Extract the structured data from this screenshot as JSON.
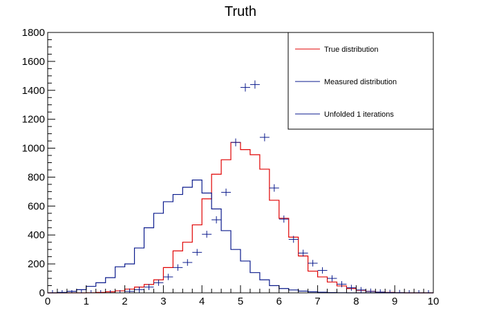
{
  "chart_data": {
    "type": "line",
    "title": "Truth",
    "xlabel": "",
    "ylabel": "",
    "xlim": [
      0,
      10
    ],
    "ylim": [
      0,
      1800
    ],
    "x_ticks": [
      "0",
      "1",
      "2",
      "3",
      "4",
      "5",
      "6",
      "7",
      "8",
      "9",
      "10"
    ],
    "y_ticks": [
      "0",
      "200",
      "400",
      "600",
      "800",
      "1000",
      "1200",
      "1400",
      "1600",
      "1800"
    ],
    "bin_edges": [
      0,
      0.25,
      0.5,
      0.75,
      1,
      1.25,
      1.5,
      1.75,
      2,
      2.25,
      2.5,
      2.75,
      3,
      3.25,
      3.5,
      3.75,
      4,
      4.25,
      4.5,
      4.75,
      5,
      5.25,
      5.5,
      5.75,
      6,
      6.25,
      6.5,
      6.75,
      7,
      7.25,
      7.5,
      7.75,
      8,
      8.25,
      8.5,
      8.75,
      9,
      9.25,
      9.5,
      9.75,
      10
    ],
    "legend_position": "top-right",
    "series": [
      {
        "name": "True distribution",
        "style": "step",
        "color": "#e00000",
        "values": [
          0,
          0,
          0,
          0,
          1,
          3,
          7,
          14,
          26,
          40,
          58,
          90,
          175,
          290,
          350,
          470,
          650,
          820,
          920,
          1040,
          990,
          955,
          855,
          640,
          515,
          385,
          255,
          150,
          110,
          75,
          48,
          30,
          18,
          10,
          5,
          3,
          1,
          0,
          0,
          0
        ]
      },
      {
        "name": "Measured distribution",
        "style": "step",
        "color": "#0a1a8c",
        "values": [
          0,
          3,
          10,
          22,
          45,
          70,
          105,
          180,
          200,
          310,
          450,
          550,
          630,
          680,
          730,
          780,
          690,
          580,
          430,
          300,
          220,
          140,
          90,
          50,
          30,
          20,
          12,
          7,
          4,
          2,
          1,
          0,
          0,
          0,
          0,
          0,
          0,
          0,
          0,
          0
        ]
      },
      {
        "name": "Unfolded 1 iterations",
        "style": "errorbar",
        "color": "#0a1a8c",
        "values": [
          0,
          0,
          0,
          0,
          0,
          0,
          0,
          0,
          10,
          22,
          40,
          70,
          110,
          175,
          210,
          280,
          405,
          505,
          695,
          1040,
          1420,
          1440,
          1075,
          725,
          510,
          370,
          275,
          205,
          155,
          100,
          60,
          35,
          20,
          10,
          5,
          2,
          1,
          0,
          0,
          0
        ]
      }
    ]
  }
}
